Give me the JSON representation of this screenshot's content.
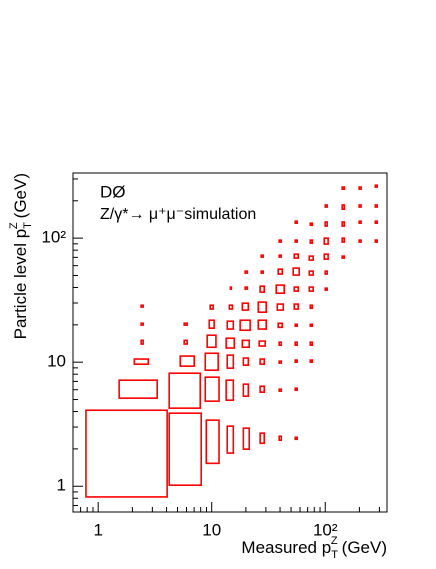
{
  "chart_data": {
    "type": "box",
    "title": "DØ",
    "annotation": "Z/γ*→ μ⁺μ⁻simulation",
    "xlabel": {
      "prefix": "Measured p",
      "sub": "T",
      "sup": "Z",
      "suffix": "(GeV)"
    },
    "ylabel": {
      "prefix": "Particle level p",
      "sub": "T",
      "sup": "Z",
      "suffix": "(GeV)"
    },
    "log_x": true,
    "log_y": true,
    "color": "#ff0000",
    "xlim": [
      0.6,
      350
    ],
    "ylim": [
      0.62,
      335
    ],
    "xticks": [
      1,
      10,
      {
        "value": 100,
        "label": "10²"
      }
    ],
    "yticks": [
      1,
      10,
      {
        "value": 100,
        "label": "10²"
      }
    ],
    "xminor": [
      0.6,
      0.7,
      0.8,
      0.9,
      2,
      3,
      4,
      5,
      6,
      7,
      8,
      9,
      20,
      30,
      40,
      50,
      60,
      70,
      80,
      90,
      200,
      300
    ],
    "yminor": [
      0.7,
      0.8,
      0.9,
      2,
      3,
      4,
      5,
      6,
      7,
      8,
      9,
      20,
      30,
      40,
      50,
      60,
      70,
      80,
      90,
      200,
      300
    ],
    "boxes": [
      [
        0.78,
        4.05,
        0.82,
        4.1
      ],
      [
        1.53,
        3.31,
        5.13,
        7.16
      ],
      [
        2.08,
        2.76,
        9.64,
        10.6
      ],
      [
        2.39,
        2.49,
        14.0,
        15.0
      ],
      [
        2.39,
        2.49,
        19.9,
        20.6
      ],
      [
        2.39,
        2.49,
        27.8,
        28.8
      ],
      [
        4.22,
        7.92,
        4.26,
        8.15
      ],
      [
        4.22,
        8.08,
        1.02,
        3.88
      ],
      [
        5.28,
        7.01,
        9.29,
        11.2
      ],
      [
        5.72,
        6.08,
        14.0,
        15.0
      ],
      [
        5.72,
        6.08,
        19.9,
        20.6
      ],
      [
        8.95,
        11.6,
        1.53,
        3.41
      ],
      [
        8.77,
        11.6,
        4.85,
        7.57
      ],
      [
        8.77,
        11.4,
        8.62,
        11.8
      ],
      [
        9.12,
        10.9,
        13.2,
        16.5
      ],
      [
        9.51,
        10.5,
        18.8,
        21.8
      ],
      [
        9.7,
        10.3,
        26.8,
        28.8
      ],
      [
        13.7,
        15.5,
        1.85,
        3.05
      ],
      [
        13.4,
        15.5,
        4.94,
        7.16
      ],
      [
        13.7,
        15.5,
        8.95,
        11.4
      ],
      [
        13.4,
        15.8,
        13.0,
        15.6
      ],
      [
        13.7,
        15.5,
        18.5,
        21.4
      ],
      [
        14.3,
        15.2,
        26.8,
        28.8
      ],
      [
        14.6,
        14.9,
        38.8,
        40.3
      ],
      [
        19.0,
        21.4,
        1.99,
        2.94
      ],
      [
        19.0,
        21.0,
        5.32,
        6.65
      ],
      [
        19.0,
        21.0,
        9.46,
        10.8
      ],
      [
        18.6,
        21.4,
        13.2,
        15.0
      ],
      [
        17.8,
        21.8,
        18.1,
        21.8
      ],
      [
        18.6,
        21.0,
        26.3,
        29.9
      ],
      [
        19.7,
        20.6,
        38.8,
        40.3
      ],
      [
        19.7,
        20.6,
        52.2,
        54.2
      ],
      [
        26.7,
        29.0,
        2.22,
        2.68
      ],
      [
        26.7,
        29.0,
        5.73,
        6.4
      ],
      [
        26.7,
        29.0,
        9.64,
        10.6
      ],
      [
        26.2,
        29.6,
        13.5,
        14.8
      ],
      [
        25.7,
        30.2,
        18.5,
        21.8
      ],
      [
        25.7,
        30.2,
        25.3,
        30.5
      ],
      [
        26.7,
        29.0,
        36.7,
        41.0
      ],
      [
        27.3,
        28.4,
        52.2,
        54.2
      ],
      [
        27.3,
        28.4,
        70.3,
        72.9
      ],
      [
        39.3,
        41.0,
        2.35,
        2.53
      ],
      [
        39.3,
        41.0,
        5.84,
        6.06
      ],
      [
        39.3,
        41.0,
        9.82,
        10.2
      ],
      [
        39.3,
        41.0,
        13.7,
        14.5
      ],
      [
        38.5,
        41.8,
        19.1,
        20.6
      ],
      [
        37.8,
        42.7,
        26.3,
        29.4
      ],
      [
        37.0,
        43.5,
        36.0,
        41.8
      ],
      [
        38.5,
        41.8,
        51.3,
        56.2
      ],
      [
        39.3,
        41.0,
        70.3,
        72.9
      ],
      [
        39.3,
        41.0,
        92.9,
        96.4
      ],
      [
        54.4,
        56.6,
        2.39,
        2.48
      ],
      [
        54.4,
        56.6,
        5.94,
        6.17
      ],
      [
        54.4,
        56.6,
        10.0,
        10.4
      ],
      [
        54.4,
        56.6,
        13.7,
        14.5
      ],
      [
        54.4,
        56.6,
        19.5,
        20.2
      ],
      [
        53.3,
        57.8,
        26.8,
        29.4
      ],
      [
        53.3,
        57.8,
        37.4,
        40.3
      ],
      [
        52.2,
        59.0,
        50.4,
        57.3
      ],
      [
        53.3,
        57.8,
        69.0,
        74.3
      ],
      [
        54.4,
        56.6,
        92.9,
        96.4
      ],
      [
        54.4,
        56.6,
        132,
        137
      ],
      [
        73.8,
        76.8,
        10.0,
        10.4
      ],
      [
        73.8,
        76.8,
        13.7,
        14.5
      ],
      [
        73.8,
        76.8,
        19.5,
        20.2
      ],
      [
        73.8,
        76.8,
        27.2,
        28.8
      ],
      [
        72.3,
        78.3,
        37.4,
        40.3
      ],
      [
        72.3,
        78.3,
        50.4,
        54.2
      ],
      [
        72.3,
        78.3,
        66.5,
        71.6
      ],
      [
        73.8,
        76.8,
        91.2,
        96.4
      ],
      [
        73.8,
        76.8,
        127,
        132
      ],
      [
        100,
        104,
        38.1,
        39.5
      ],
      [
        100,
        104,
        51.3,
        54.2
      ],
      [
        98.0,
        106,
        67.7,
        74.3
      ],
      [
        98.0,
        106,
        89.5,
        100
      ],
      [
        100,
        104,
        125,
        135
      ],
      [
        100,
        104,
        178,
        185
      ],
      [
        141,
        147,
        69.0,
        71.6
      ],
      [
        141,
        147,
        92.9,
        100
      ],
      [
        141,
        147,
        125,
        135
      ],
      [
        141,
        147,
        171,
        185
      ],
      [
        141,
        147,
        248,
        258
      ],
      [
        199,
        207,
        92.9,
        96.4
      ],
      [
        199,
        207,
        132,
        137
      ],
      [
        199,
        207,
        178,
        185
      ],
      [
        199,
        207,
        248,
        258
      ],
      [
        276,
        287,
        92.9,
        96.4
      ],
      [
        276,
        287,
        132,
        137
      ],
      [
        276,
        287,
        178,
        185
      ],
      [
        276,
        287,
        258,
        267
      ]
    ]
  }
}
